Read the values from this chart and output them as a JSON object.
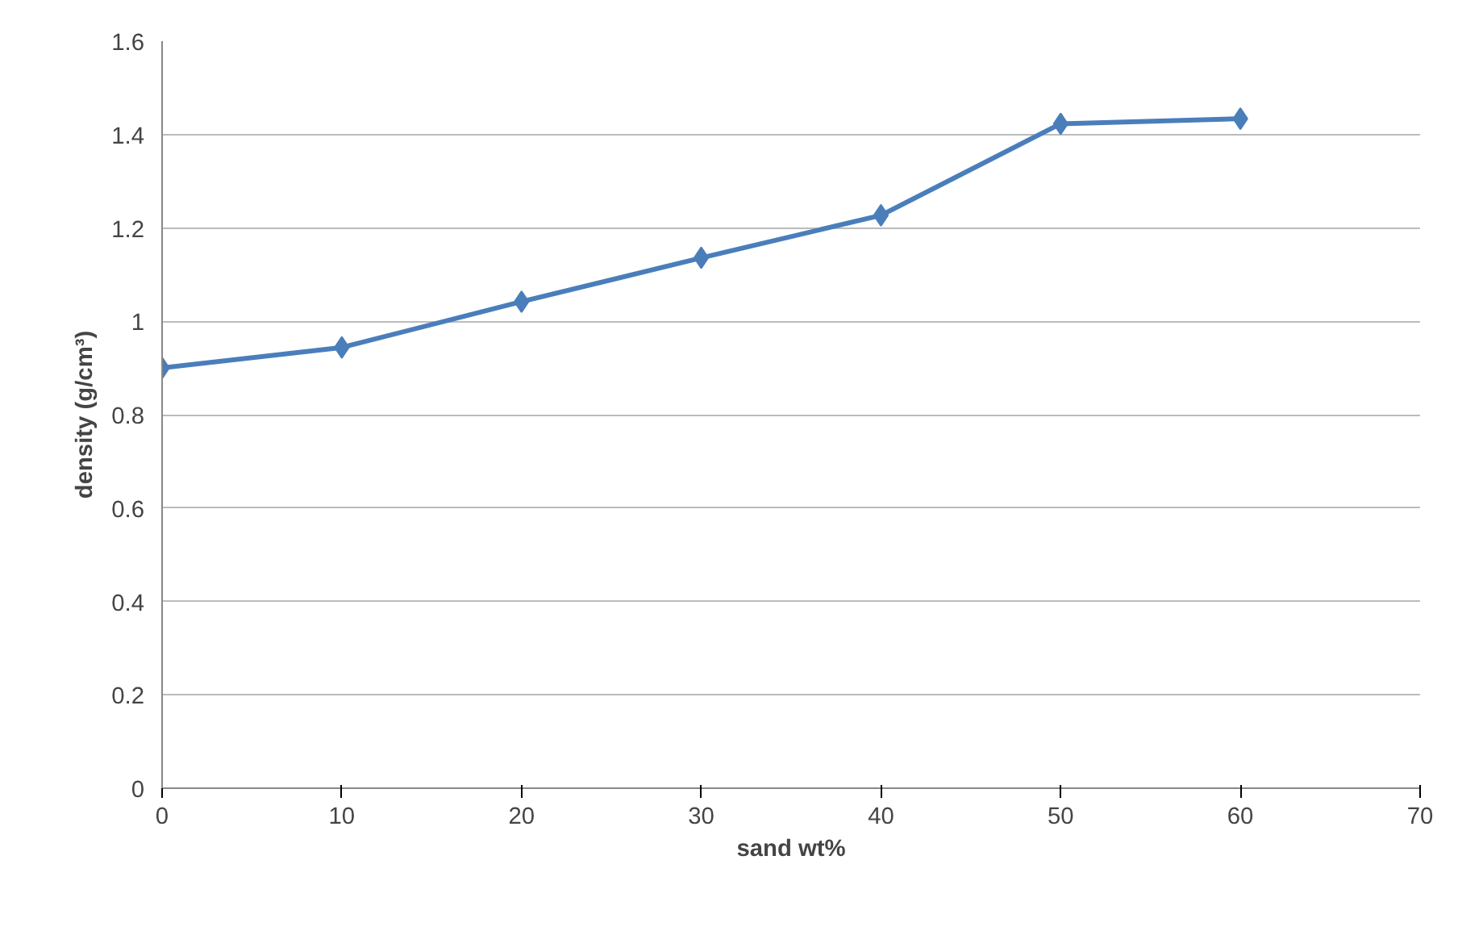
{
  "chart_data": {
    "type": "line",
    "xlabel": "sand wt%",
    "ylabel": "density (g/cm³)",
    "x": [
      0,
      10,
      20,
      30,
      40,
      50,
      60
    ],
    "series": [
      {
        "color": "#4a7ebb",
        "values": [
          0.9,
          0.944,
          1.042,
          1.136,
          1.227,
          1.423,
          1.434
        ]
      }
    ],
    "xlim": [
      0,
      70
    ],
    "xticks": [
      0,
      10,
      20,
      30,
      40,
      50,
      60,
      70
    ],
    "ylim": [
      0,
      1.6
    ],
    "yticks": [
      0,
      {
        "value": 0.2,
        "label": "0.2"
      },
      {
        "value": 0.4,
        "label": "0.4"
      },
      {
        "value": 0.6,
        "label": "0.6"
      },
      {
        "value": 0.8,
        "label": "0.8"
      },
      1,
      {
        "value": 1.2,
        "label": "1.2"
      },
      {
        "value": 1.4,
        "label": "1.4"
      },
      {
        "value": 1.6,
        "label": "1.6"
      }
    ],
    "grid": "y",
    "marker": "diamond",
    "line_style": "solid"
  }
}
